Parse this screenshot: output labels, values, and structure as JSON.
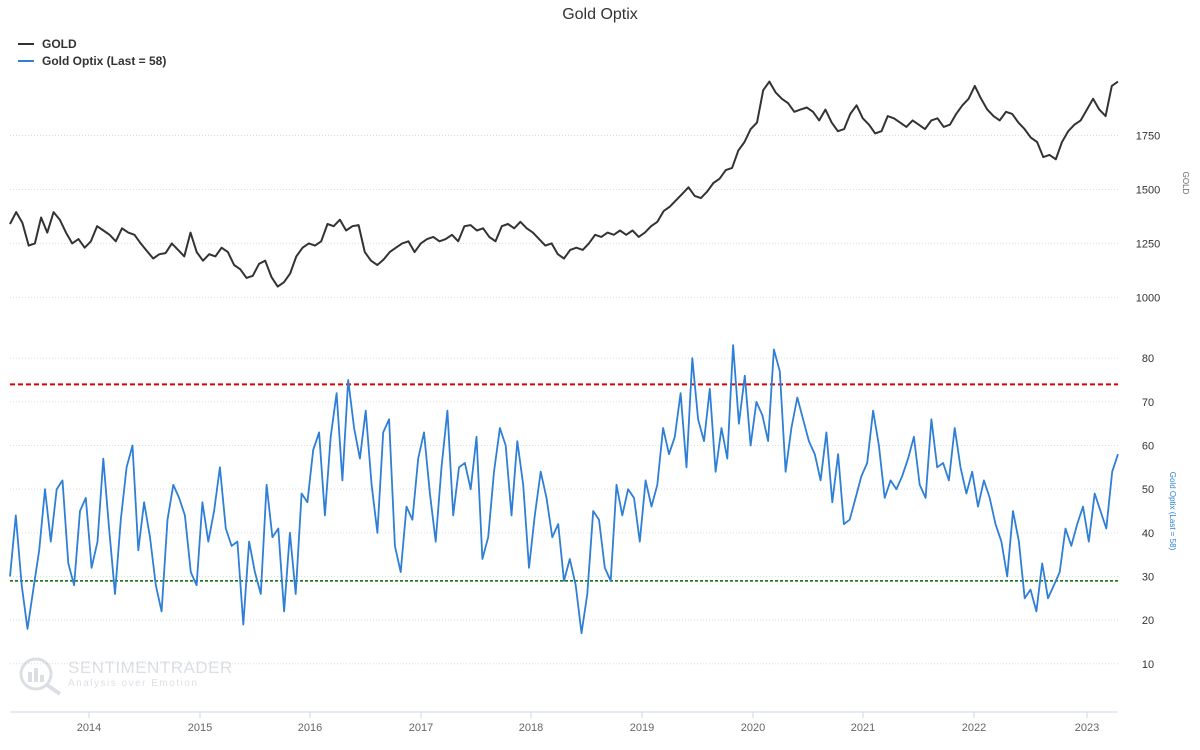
{
  "title": "Gold Optix",
  "legend": [
    {
      "label": "GOLD",
      "color": "#333333"
    },
    {
      "label": "Gold Optix (Last = 58)",
      "color": "#2e7fd6"
    }
  ],
  "watermark": {
    "name": "SENTIMENTRADER",
    "tagline": "Analysis over Emotion"
  },
  "colors": {
    "gold_line": "#333333",
    "optix_line": "#2e7fd6",
    "upper_ref": "#dd0000",
    "lower_ref": "#006600",
    "grid": "#dddddd"
  },
  "chart_data": [
    {
      "type": "line",
      "panel": "top",
      "series": [
        {
          "name": "GOLD",
          "values": [
            1340,
            1395,
            1345,
            1240,
            1250,
            1370,
            1300,
            1395,
            1360,
            1300,
            1250,
            1270,
            1230,
            1260,
            1330,
            1310,
            1290,
            1260,
            1320,
            1300,
            1290,
            1250,
            1215,
            1180,
            1200,
            1205,
            1250,
            1220,
            1190,
            1300,
            1210,
            1170,
            1200,
            1190,
            1230,
            1210,
            1150,
            1130,
            1090,
            1100,
            1155,
            1170,
            1095,
            1050,
            1070,
            1110,
            1190,
            1230,
            1250,
            1240,
            1260,
            1340,
            1330,
            1360,
            1310,
            1330,
            1335,
            1210,
            1170,
            1150,
            1175,
            1210,
            1230,
            1250,
            1260,
            1210,
            1250,
            1270,
            1280,
            1260,
            1270,
            1290,
            1260,
            1330,
            1335,
            1310,
            1320,
            1280,
            1260,
            1330,
            1340,
            1320,
            1350,
            1320,
            1300,
            1270,
            1240,
            1250,
            1200,
            1180,
            1220,
            1230,
            1220,
            1250,
            1290,
            1280,
            1300,
            1290,
            1310,
            1290,
            1310,
            1280,
            1300,
            1330,
            1350,
            1400,
            1420,
            1450,
            1480,
            1510,
            1470,
            1460,
            1490,
            1530,
            1550,
            1590,
            1600,
            1680,
            1720,
            1780,
            1810,
            1960,
            2000,
            1950,
            1920,
            1900,
            1860,
            1870,
            1880,
            1860,
            1820,
            1870,
            1810,
            1770,
            1780,
            1850,
            1890,
            1830,
            1800,
            1760,
            1770,
            1840,
            1830,
            1810,
            1790,
            1820,
            1800,
            1780,
            1820,
            1830,
            1790,
            1800,
            1850,
            1890,
            1920,
            1980,
            1920,
            1870,
            1840,
            1820,
            1860,
            1850,
            1810,
            1780,
            1740,
            1720,
            1650,
            1660,
            1640,
            1720,
            1770,
            1800,
            1820,
            1870,
            1920,
            1870,
            1840,
            1980,
            2000
          ]
        }
      ],
      "x_ticks": [
        "2014",
        "2015",
        "2016",
        "2017",
        "2018",
        "2019",
        "2020",
        "2021",
        "2022",
        "2023"
      ],
      "y_ticks": [
        "1000",
        "1250",
        "1500",
        "1750"
      ],
      "ylabel": "GOLD",
      "ylim": [
        960,
        2100
      ]
    },
    {
      "type": "line",
      "panel": "bottom",
      "series": [
        {
          "name": "Gold Optix (Last = 58)",
          "values": [
            30,
            44,
            28,
            18,
            27,
            36,
            50,
            38,
            50,
            52,
            33,
            28,
            45,
            48,
            32,
            38,
            57,
            41,
            26,
            43,
            55,
            60,
            36,
            47,
            39,
            28,
            22,
            43,
            51,
            48,
            44,
            31,
            28,
            47,
            38,
            45,
            55,
            41,
            37,
            38,
            19,
            38,
            31,
            26,
            51,
            39,
            41,
            22,
            40,
            26,
            49,
            47,
            59,
            63,
            44,
            62,
            72,
            52,
            75,
            64,
            57,
            68,
            51,
            40,
            63,
            66,
            37,
            31,
            46,
            43,
            57,
            63,
            49,
            38,
            55,
            68,
            44,
            55,
            56,
            50,
            62,
            34,
            39,
            54,
            64,
            60,
            44,
            61,
            51,
            32,
            44,
            54,
            48,
            39,
            42,
            29,
            34,
            28,
            17,
            26,
            45,
            43,
            32,
            29,
            51,
            44,
            50,
            48,
            38,
            52,
            46,
            51,
            64,
            58,
            62,
            72,
            55,
            80,
            66,
            61,
            73,
            54,
            64,
            57,
            83,
            65,
            76,
            60,
            70,
            67,
            61,
            82,
            77,
            54,
            64,
            71,
            66,
            61,
            58,
            52,
            63,
            47,
            58,
            42,
            43,
            48,
            53,
            56,
            68,
            60,
            48,
            52,
            50,
            53,
            57,
            62,
            51,
            48,
            66,
            55,
            56,
            52,
            64,
            55,
            49,
            54,
            46,
            52,
            48,
            42,
            38,
            30,
            45,
            38,
            25,
            27,
            22,
            33,
            25,
            28,
            31,
            41,
            37,
            42,
            46,
            38,
            49,
            45,
            41,
            54,
            58
          ]
        }
      ],
      "reference_lines": [
        {
          "value": 74,
          "style": "dashed",
          "color": "#dd0000"
        },
        {
          "value": 29,
          "style": "dashed",
          "color": "#006600"
        }
      ],
      "y_ticks": [
        "10",
        "20",
        "30",
        "40",
        "50",
        "60",
        "70",
        "80"
      ],
      "ylabel": "Gold Optix (Last = 58)",
      "ylim": [
        4,
        86
      ]
    }
  ]
}
